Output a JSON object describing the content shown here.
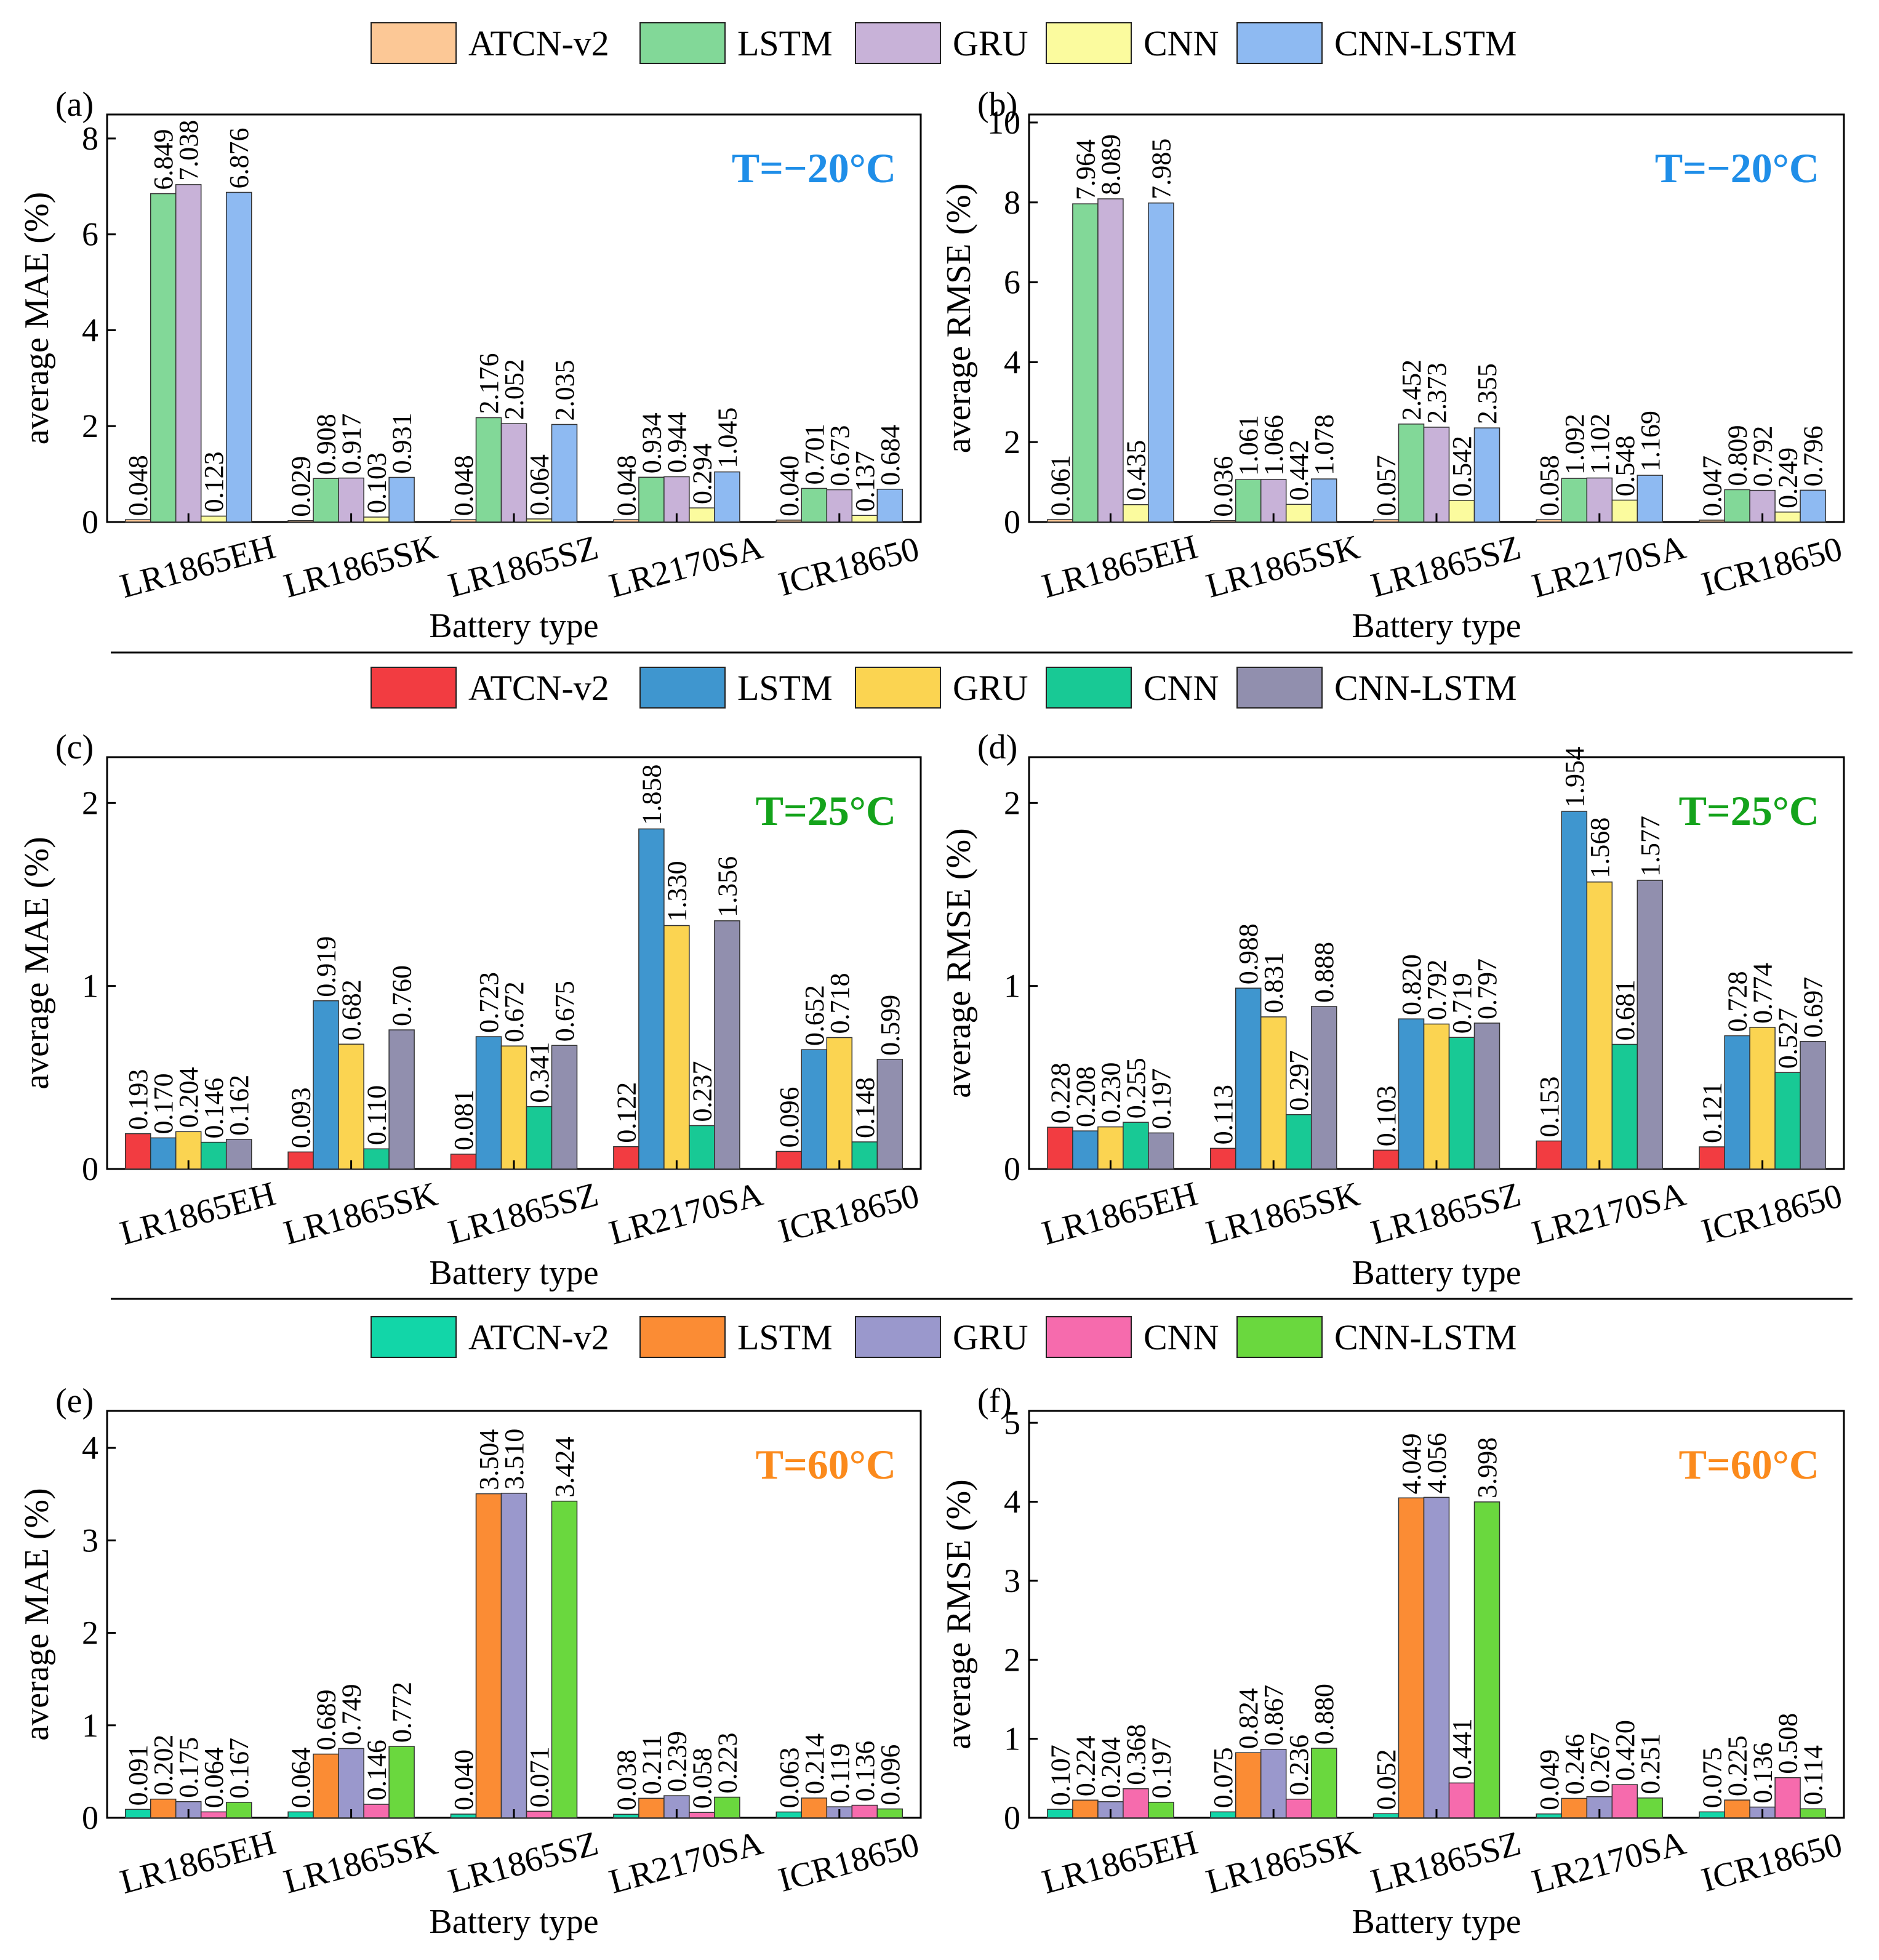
{
  "categories": [
    "LR1865EH",
    "LR1865SK",
    "LR1865SZ",
    "LR2170SA",
    "ICR18650"
  ],
  "models": [
    "ATCN-v2",
    "LSTM",
    "GRU",
    "CNN",
    "CNN-LSTM"
  ],
  "xlabel": "Battery type",
  "groups": [
    {
      "colors": [
        "#fcc896",
        "#82d898",
        "#c8b2d8",
        "#fbfb9e",
        "#8ebaf2"
      ],
      "temp_label": "T=−20°C",
      "temp_color": "#1f8ee8"
    },
    {
      "colors": [
        "#f23c41",
        "#3f96cf",
        "#fbd451",
        "#18c995",
        "#918fae"
      ],
      "temp_label": "T=25°C",
      "temp_color": "#14a31b"
    },
    {
      "colors": [
        "#12d6a8",
        "#fb8c34",
        "#9a98cc",
        "#f66bad",
        "#6ad83e"
      ],
      "temp_label": "T=60°C",
      "temp_color": "#fb8a1c"
    }
  ],
  "chart_data": [
    {
      "type": "bar",
      "panel": "(a)",
      "group": 0,
      "ylabel": "average MAE (%)",
      "xlabel": "Battery type",
      "ylim": [
        0,
        8.5
      ],
      "yticks": [
        0,
        2,
        4,
        6,
        8
      ],
      "categories": [
        "LR1865EH",
        "LR1865SK",
        "LR1865SZ",
        "LR2170SA",
        "ICR18650"
      ],
      "series": [
        {
          "name": "ATCN-v2",
          "values": [
            0.048,
            0.029,
            0.048,
            0.048,
            0.04
          ],
          "labels": [
            "0.048",
            "0.029",
            "0.048",
            "0.048",
            "0.040"
          ]
        },
        {
          "name": "LSTM",
          "values": [
            6.849,
            0.908,
            2.176,
            0.934,
            0.701
          ],
          "labels": [
            "6.849",
            "0.908",
            "2.176",
            "0.934",
            "0.701"
          ]
        },
        {
          "name": "GRU",
          "values": [
            7.038,
            0.917,
            2.052,
            0.944,
            0.673
          ],
          "labels": [
            "7.038",
            "0.917",
            "2.052",
            "0.944",
            "0.673"
          ]
        },
        {
          "name": "CNN",
          "values": [
            0.123,
            0.103,
            0.064,
            0.294,
            0.137
          ],
          "labels": [
            "0.123",
            "0.103",
            "0.064",
            "0.294",
            "0.137"
          ]
        },
        {
          "name": "CNN-LSTM",
          "values": [
            6.876,
            0.931,
            2.035,
            1.045,
            0.684
          ],
          "labels": [
            "6.876",
            "0.931",
            "2.035",
            "1.045",
            "0.684"
          ]
        }
      ]
    },
    {
      "type": "bar",
      "panel": "(b)",
      "group": 0,
      "ylabel": "average RMSE (%)",
      "xlabel": "Battery type",
      "ylim": [
        0,
        10.2
      ],
      "yticks": [
        0,
        2,
        4,
        6,
        8,
        10
      ],
      "categories": [
        "LR1865EH",
        "LR1865SK",
        "LR1865SZ",
        "LR2170SA",
        "ICR18650"
      ],
      "series": [
        {
          "name": "ATCN-v2",
          "values": [
            0.061,
            0.036,
            0.057,
            0.058,
            0.047
          ],
          "labels": [
            "0.061",
            "0.036",
            "0.057",
            "0.058",
            "0.047"
          ]
        },
        {
          "name": "LSTM",
          "values": [
            7.964,
            1.061,
            2.452,
            1.092,
            0.809
          ],
          "labels": [
            "7.964",
            "1.061",
            "2.452",
            "1.092",
            "0.809"
          ]
        },
        {
          "name": "GRU",
          "values": [
            8.089,
            1.066,
            2.373,
            1.102,
            0.792
          ],
          "labels": [
            "8.089",
            "1.066",
            "2.373",
            "1.102",
            "0.792"
          ]
        },
        {
          "name": "CNN",
          "values": [
            0.435,
            0.442,
            0.542,
            0.548,
            0.249
          ],
          "labels": [
            "0.435",
            "0.442",
            "0.542",
            "0.548",
            "0.249"
          ]
        },
        {
          "name": "CNN-LSTM",
          "values": [
            7.985,
            1.078,
            2.355,
            1.169,
            0.796
          ],
          "labels": [
            "7.985",
            "1.078",
            "2.355",
            "1.169",
            "0.796"
          ]
        }
      ]
    },
    {
      "type": "bar",
      "panel": "(c)",
      "group": 1,
      "ylabel": "average MAE (%)",
      "xlabel": "Battery type",
      "ylim": [
        0,
        2.25
      ],
      "yticks": [
        0,
        1,
        2
      ],
      "categories": [
        "LR1865EH",
        "LR1865SK",
        "LR1865SZ",
        "LR2170SA",
        "ICR18650"
      ],
      "series": [
        {
          "name": "ATCN-v2",
          "values": [
            0.193,
            0.093,
            0.081,
            0.122,
            0.096
          ],
          "labels": [
            "0.193",
            "0.093",
            "0.081",
            "0.122",
            "0.096"
          ]
        },
        {
          "name": "LSTM",
          "values": [
            0.17,
            0.919,
            0.723,
            1.858,
            0.652
          ],
          "labels": [
            "0.170",
            "0.919",
            "0.723",
            "1.858",
            "0.652"
          ]
        },
        {
          "name": "GRU",
          "values": [
            0.204,
            0.682,
            0.672,
            1.33,
            0.718
          ],
          "labels": [
            "0.204",
            "0.682",
            "0.672",
            "1.330",
            "0.718"
          ]
        },
        {
          "name": "CNN",
          "values": [
            0.146,
            0.11,
            0.341,
            0.237,
            0.148
          ],
          "labels": [
            "0.146",
            "0.110",
            "0.341",
            "0.237",
            "0.148"
          ]
        },
        {
          "name": "CNN-LSTM",
          "values": [
            0.162,
            0.76,
            0.675,
            1.356,
            0.599
          ],
          "labels": [
            "0.162",
            "0.760",
            "0.675",
            "1.356",
            "0.599"
          ]
        }
      ]
    },
    {
      "type": "bar",
      "panel": "(d)",
      "group": 1,
      "ylabel": "average RMSE (%)",
      "xlabel": "Battery type",
      "ylim": [
        0,
        2.25
      ],
      "yticks": [
        0,
        1,
        2
      ],
      "categories": [
        "LR1865EH",
        "LR1865SK",
        "LR1865SZ",
        "LR2170SA",
        "ICR18650"
      ],
      "series": [
        {
          "name": "ATCN-v2",
          "values": [
            0.228,
            0.113,
            0.103,
            0.153,
            0.121
          ],
          "labels": [
            "0.228",
            "0.113",
            "0.103",
            "0.153",
            "0.121"
          ]
        },
        {
          "name": "LSTM",
          "values": [
            0.208,
            0.988,
            0.82,
            1.954,
            0.728
          ],
          "labels": [
            "0.208",
            "0.988",
            "0.820",
            "1.954",
            "0.728"
          ]
        },
        {
          "name": "GRU",
          "values": [
            0.23,
            0.831,
            0.792,
            1.568,
            0.774
          ],
          "labels": [
            "0.230",
            "0.831",
            "0.792",
            "1.568",
            "0.774"
          ]
        },
        {
          "name": "CNN",
          "values": [
            0.255,
            0.297,
            0.719,
            0.681,
            0.527
          ],
          "labels": [
            "0.255",
            "0.297",
            "0.719",
            "0.681",
            "0.527"
          ]
        },
        {
          "name": "CNN-LSTM",
          "values": [
            0.197,
            0.888,
            0.797,
            1.577,
            0.697
          ],
          "labels": [
            "0.197",
            "0.888",
            "0.797",
            "1.577",
            "0.697"
          ]
        }
      ]
    },
    {
      "type": "bar",
      "panel": "(e)",
      "group": 2,
      "ylabel": "average MAE (%)",
      "xlabel": "Battery type",
      "ylim": [
        0,
        4.4
      ],
      "yticks": [
        0,
        1,
        2,
        3,
        4
      ],
      "categories": [
        "LR1865EH",
        "LR1865SK",
        "LR1865SZ",
        "LR2170SA",
        "ICR18650"
      ],
      "series": [
        {
          "name": "ATCN-v2",
          "values": [
            0.091,
            0.064,
            0.04,
            0.038,
            0.063
          ],
          "labels": [
            "0.091",
            "0.064",
            "0.040",
            "0.038",
            "0.063"
          ]
        },
        {
          "name": "LSTM",
          "values": [
            0.202,
            0.689,
            3.504,
            0.211,
            0.214
          ],
          "labels": [
            "0.202",
            "0.689",
            "3.504",
            "0.211",
            "0.214"
          ]
        },
        {
          "name": "GRU",
          "values": [
            0.175,
            0.749,
            3.51,
            0.239,
            0.119
          ],
          "labels": [
            "0.175",
            "0.749",
            "3.510",
            "0.239",
            "0.119"
          ]
        },
        {
          "name": "CNN",
          "values": [
            0.064,
            0.146,
            0.071,
            0.058,
            0.136
          ],
          "labels": [
            "0.064",
            "0.146",
            "0.071",
            "0.058",
            "0.136"
          ]
        },
        {
          "name": "CNN-LSTM",
          "values": [
            0.167,
            0.772,
            3.424,
            0.223,
            0.096
          ],
          "labels": [
            "0.167",
            "0.772",
            "3.424",
            "0.223",
            "0.096"
          ]
        }
      ]
    },
    {
      "type": "bar",
      "panel": "(f)",
      "group": 2,
      "ylabel": "average RMSE (%)",
      "xlabel": "Battery type",
      "ylim": [
        0,
        5.15
      ],
      "yticks": [
        0,
        1,
        2,
        3,
        4,
        5
      ],
      "categories": [
        "LR1865EH",
        "LR1865SK",
        "LR1865SZ",
        "LR2170SA",
        "ICR18650"
      ],
      "series": [
        {
          "name": "ATCN-v2",
          "values": [
            0.107,
            0.075,
            0.052,
            0.049,
            0.075
          ],
          "labels": [
            "0.107",
            "0.075",
            "0.052",
            "0.049",
            "0.075"
          ]
        },
        {
          "name": "LSTM",
          "values": [
            0.224,
            0.824,
            4.049,
            0.246,
            0.225
          ],
          "labels": [
            "0.224",
            "0.824",
            "4.049",
            "0.246",
            "0.225"
          ]
        },
        {
          "name": "GRU",
          "values": [
            0.204,
            0.867,
            4.056,
            0.267,
            0.136
          ],
          "labels": [
            "0.204",
            "0.867",
            "4.056",
            "0.267",
            "0.136"
          ]
        },
        {
          "name": "CNN",
          "values": [
            0.368,
            0.236,
            0.441,
            0.42,
            0.508
          ],
          "labels": [
            "0.368",
            "0.236",
            "0.441",
            "0.420",
            "0.508"
          ]
        },
        {
          "name": "CNN-LSTM",
          "values": [
            0.197,
            0.88,
            3.998,
            0.251,
            0.114
          ],
          "labels": [
            "0.197",
            "0.880",
            "3.998",
            "0.251",
            "0.114"
          ]
        }
      ]
    }
  ]
}
